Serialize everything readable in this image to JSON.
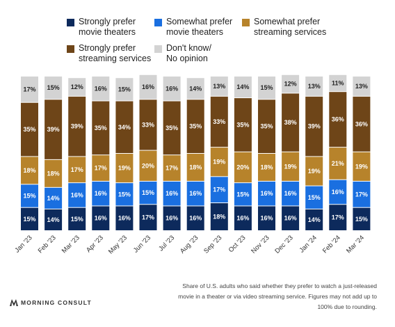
{
  "chart_data": {
    "type": "bar",
    "stacked": true,
    "title": "",
    "xlabel": "",
    "ylabel": "",
    "ylim": [
      0,
      100
    ],
    "grid": false,
    "legend_position": "top",
    "categories": [
      "Jan '23",
      "Feb '23",
      "Mar '23",
      "Apr '23",
      "May '23",
      "Jun '23",
      "Jul '23",
      "Aug '23",
      "Sep '23",
      "Oct '23",
      "Nov '23",
      "Dec '23",
      "Jan '24",
      "Feb '24",
      "Mar '24"
    ],
    "series": [
      {
        "name": "Strongly prefer movie theaters",
        "color": "#0d2a5c",
        "text_color": "#ffffff",
        "values": [
          15,
          14,
          15,
          16,
          16,
          17,
          16,
          16,
          18,
          16,
          16,
          16,
          14,
          17,
          15
        ]
      },
      {
        "name": "Somewhat prefer movie theaters",
        "color": "#1a6fe0",
        "text_color": "#ffffff",
        "values": [
          15,
          14,
          16,
          16,
          15,
          15,
          16,
          16,
          17,
          15,
          16,
          16,
          15,
          16,
          17
        ]
      },
      {
        "name": "Somewhat prefer streaming services",
        "color": "#b7832b",
        "text_color": "#ffffff",
        "values": [
          18,
          18,
          17,
          17,
          19,
          20,
          17,
          18,
          19,
          20,
          18,
          19,
          19,
          21,
          19
        ]
      },
      {
        "name": "Strongly prefer streaming services",
        "color": "#6e4518",
        "text_color": "#ffffff",
        "values": [
          35,
          39,
          39,
          35,
          34,
          33,
          35,
          35,
          33,
          35,
          35,
          38,
          39,
          36,
          36
        ]
      },
      {
        "name": "Don't know/ No opinion",
        "color": "#d3d3d3",
        "text_color": "#222222",
        "values": [
          17,
          15,
          12,
          16,
          15,
          16,
          16,
          14,
          13,
          14,
          15,
          12,
          13,
          11,
          13
        ]
      }
    ],
    "value_suffix": "%"
  },
  "legend": [
    {
      "label": "Strongly prefer\nmovie theaters",
      "color": "#0d2a5c"
    },
    {
      "label": "Somewhat prefer\nmovie theaters",
      "color": "#1a6fe0"
    },
    {
      "label": "Somewhat prefer\nstreaming services",
      "color": "#b7832b"
    },
    {
      "label": "Strongly prefer\nstreaming services",
      "color": "#6e4518"
    },
    {
      "label": "Don't know/\nNo opinion",
      "color": "#d3d3d3"
    }
  ],
  "footnote": "Share of U.S. adults who said whether they prefer to watch a just-released movie in a theater or via video streaming service. Figures may not add up to 100% due to rounding.",
  "logo_text": "MORNING CONSULT"
}
